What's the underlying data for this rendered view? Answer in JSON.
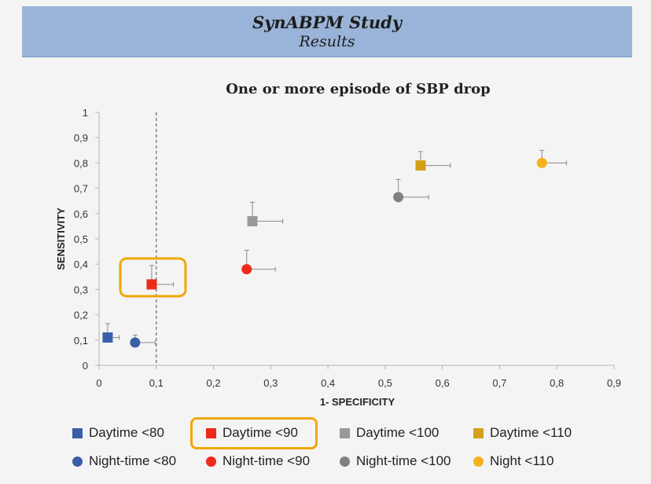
{
  "slide": {
    "title": "SynABPM Study",
    "subtitle": "Results"
  },
  "chart_data": {
    "type": "scatter",
    "title": "One or more episode of SBP drop",
    "xlabel": "1- SPECIFICITY",
    "ylabel": "SENSITIVITY",
    "xlim": [
      0,
      0.9
    ],
    "ylim": [
      0,
      1
    ],
    "x_ticks": [
      "0",
      "0,1",
      "0,2",
      "0,3",
      "0,4",
      "0,5",
      "0,6",
      "0,7",
      "0,8",
      "0,9"
    ],
    "y_ticks": [
      "0",
      "0,1",
      "0,2",
      "0,3",
      "0,4",
      "0,5",
      "0,6",
      "0,7",
      "0,8",
      "0,9",
      "1"
    ],
    "reference_line_x": 0.1,
    "highlighted_series": "Daytime <90",
    "series": [
      {
        "name": "Daytime <80",
        "marker": "square",
        "color": "#3a5fa8",
        "x": 0.015,
        "y": 0.11,
        "x_err": 0.02,
        "y_err": 0.055
      },
      {
        "name": "Daytime <90",
        "marker": "square",
        "color": "#ee2a1b",
        "x": 0.092,
        "y": 0.32,
        "x_err": 0.038,
        "y_err": 0.075
      },
      {
        "name": "Daytime <100",
        "marker": "square",
        "color": "#999999",
        "x": 0.268,
        "y": 0.57,
        "x_err": 0.053,
        "y_err": 0.075
      },
      {
        "name": "Daytime <110",
        "marker": "square",
        "color": "#d4a017",
        "x": 0.562,
        "y": 0.79,
        "x_err": 0.052,
        "y_err": 0.055
      },
      {
        "name": "Night-time <80",
        "marker": "circle",
        "color": "#3a5fa8",
        "x": 0.063,
        "y": 0.09,
        "x_err": 0.035,
        "y_err": 0.03
      },
      {
        "name": "Night-time <90",
        "marker": "circle",
        "color": "#ee2a1b",
        "x": 0.258,
        "y": 0.38,
        "x_err": 0.05,
        "y_err": 0.075
      },
      {
        "name": "Night-time <100",
        "marker": "circle",
        "color": "#808080",
        "x": 0.523,
        "y": 0.665,
        "x_err": 0.053,
        "y_err": 0.07
      },
      {
        "name": "Night <110",
        "marker": "circle",
        "color": "#f5b21c",
        "x": 0.774,
        "y": 0.8,
        "x_err": 0.043,
        "y_err": 0.05
      }
    ]
  }
}
